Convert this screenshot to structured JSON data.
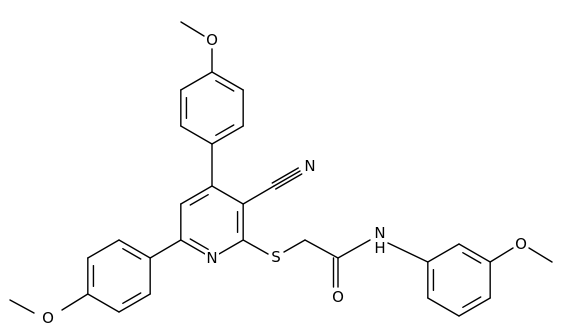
{
  "atoms": [
    "O",
    "N",
    "N",
    "S",
    "N",
    "H",
    "O",
    "O",
    "O"
  ]
}
